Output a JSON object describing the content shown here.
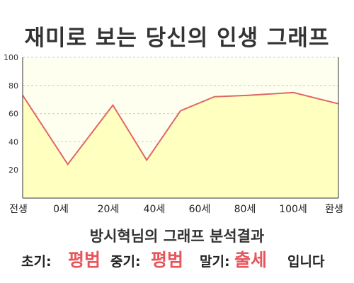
{
  "title": "재미로 보는 당신의 인생 그래프",
  "result": {
    "heading": "방시혁님의 그래프 분석결과",
    "early_label": "초기:",
    "early_value": "평범",
    "mid_label": "중기:",
    "mid_value": "평범",
    "late_label": "말기:",
    "late_value": "출세",
    "ending": "입니다"
  },
  "colors": {
    "line": "#e06666",
    "fill": "#ffffc0",
    "plot_bg": "#fffff0",
    "grid": "#cccccc",
    "highlight": "#e8555b"
  },
  "chart_data": {
    "type": "area",
    "x_tick_labels": [
      "전생",
      "0세",
      "20세",
      "40세",
      "60세",
      "80세",
      "100세",
      "환생"
    ],
    "x": [
      -20,
      0,
      20,
      35,
      50,
      65,
      80,
      100,
      120
    ],
    "values": [
      73,
      24,
      66,
      27,
      62,
      72,
      73,
      75,
      67
    ],
    "xlim": [
      -20,
      120
    ],
    "ylim": [
      0,
      100
    ],
    "y_ticks": [
      20,
      40,
      60,
      80,
      100
    ],
    "grid": true
  }
}
